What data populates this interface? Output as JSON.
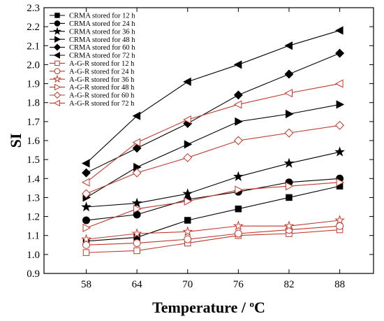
{
  "chart_data": {
    "type": "line",
    "x": [
      58,
      64,
      70,
      76,
      82,
      88
    ],
    "xlabel": "Temperature / °C",
    "ylabel": "SI",
    "xlim": [
      53,
      92
    ],
    "ylim": [
      0.9,
      2.3
    ],
    "xticks": [
      58,
      64,
      70,
      76,
      82,
      88
    ],
    "yticks": [
      0.9,
      1.0,
      1.1,
      1.2,
      1.3,
      1.4,
      1.5,
      1.6,
      1.7,
      1.8,
      1.9,
      2.0,
      2.1,
      2.2,
      2.3
    ],
    "grid": false,
    "legend_position": "top-left",
    "series": [
      {
        "name": "CRMA stored for 12 h",
        "marker": "square",
        "filled": true,
        "color": "#000000",
        "values": [
          1.07,
          1.09,
          1.18,
          1.24,
          1.3,
          1.36
        ]
      },
      {
        "name": "CRMA stored for 24 h",
        "marker": "circle",
        "filled": true,
        "color": "#000000",
        "values": [
          1.18,
          1.21,
          1.29,
          1.33,
          1.38,
          1.4
        ]
      },
      {
        "name": "CRMA stored for 36 h",
        "marker": "star",
        "filled": true,
        "color": "#000000",
        "values": [
          1.25,
          1.27,
          1.32,
          1.41,
          1.48,
          1.54
        ]
      },
      {
        "name": "CRMA stored for 48 h",
        "marker": "triangle-right",
        "filled": true,
        "color": "#000000",
        "values": [
          1.3,
          1.46,
          1.58,
          1.7,
          1.74,
          1.79
        ]
      },
      {
        "name": "CRMA stored for 60 h",
        "marker": "diamond",
        "filled": true,
        "color": "#000000",
        "values": [
          1.43,
          1.56,
          1.69,
          1.84,
          1.95,
          2.06
        ]
      },
      {
        "name": "CRMA stored for 72 h",
        "marker": "triangle-left",
        "filled": true,
        "color": "#000000",
        "values": [
          1.48,
          1.73,
          1.91,
          2.0,
          2.1,
          2.18
        ]
      },
      {
        "name": "A-G-R stored for 12 h",
        "marker": "square",
        "filled": false,
        "color": "#c0392b",
        "values": [
          1.01,
          1.02,
          1.06,
          1.1,
          1.11,
          1.13
        ]
      },
      {
        "name": "A-G-R stored for 24 h",
        "marker": "circle",
        "filled": false,
        "color": "#c0392b",
        "values": [
          1.05,
          1.06,
          1.08,
          1.11,
          1.13,
          1.15
        ]
      },
      {
        "name": "A-G-R stored for 36 h",
        "marker": "star",
        "filled": false,
        "color": "#c0392b",
        "values": [
          1.08,
          1.11,
          1.12,
          1.15,
          1.15,
          1.18
        ]
      },
      {
        "name": "A-G-R stored for 48 h",
        "marker": "triangle-right",
        "filled": false,
        "color": "#c0392b",
        "values": [
          1.14,
          1.24,
          1.28,
          1.34,
          1.36,
          1.38
        ]
      },
      {
        "name": "A-G-R stored for 60 h",
        "marker": "diamond",
        "filled": false,
        "color": "#c0392b",
        "values": [
          1.32,
          1.43,
          1.51,
          1.6,
          1.64,
          1.68
        ]
      },
      {
        "name": "A-G-R stored for 72 h",
        "marker": "triangle-left",
        "filled": false,
        "color": "#c0392b",
        "values": [
          1.38,
          1.59,
          1.71,
          1.79,
          1.85,
          1.9
        ]
      }
    ]
  }
}
